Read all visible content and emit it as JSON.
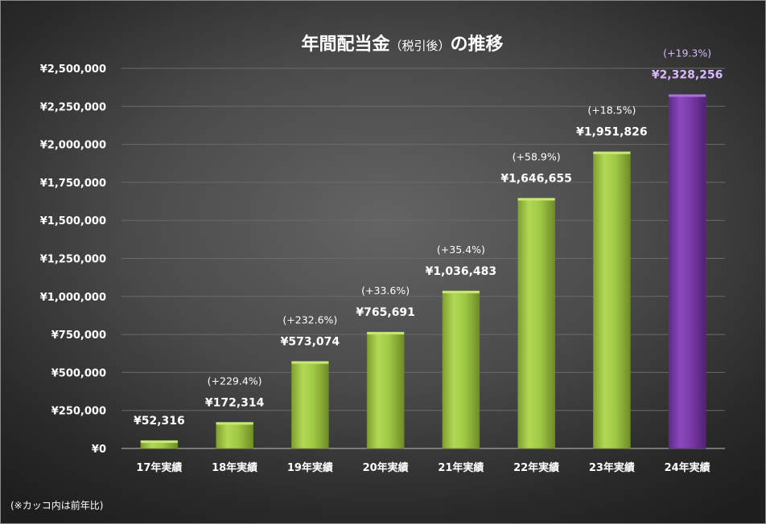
{
  "chart_data": {
    "type": "bar",
    "title": "年間配当金",
    "subtitle": "（税引後）",
    "title_suffix": "の推移",
    "categories": [
      "17年実績",
      "18年実績",
      "19年実績",
      "20年実績",
      "21年実績",
      "22年実績",
      "23年実績",
      "24年実績"
    ],
    "values": [
      52316,
      172314,
      573074,
      765691,
      1036483,
      1646655,
      1951826,
      2328256
    ],
    "value_labels": [
      "¥52,316",
      "¥172,314",
      "¥573,074",
      "¥765,691",
      "¥1,036,483",
      "¥1,646,655",
      "¥1,951,826",
      "¥2,328,256"
    ],
    "growth_labels": [
      "",
      "(+229.4%)",
      "(+232.6%)",
      "(+33.6%)",
      "(+35.4%)",
      "(+58.9%)",
      "(+18.5%)",
      "(+19.3%)"
    ],
    "ylim": [
      0,
      2500000
    ],
    "ytick_values": [
      0,
      250000,
      500000,
      750000,
      1000000,
      1250000,
      1500000,
      1750000,
      2000000,
      2250000,
      2500000
    ],
    "ytick_labels": [
      "¥0",
      "¥250,000",
      "¥500,000",
      "¥750,000",
      "¥1,000,000",
      "¥1,250,000",
      "¥1,500,000",
      "¥1,750,000",
      "¥2,000,000",
      "¥2,250,000",
      "¥2,500,000"
    ],
    "grid": true,
    "highlight_index": 7,
    "colors": {
      "bar": "#9bc53d",
      "bar_highlight": "#7b3aa8",
      "highlight_text": "#d8b7ff",
      "grid": "#6a6a6a",
      "text": "#ffffff"
    }
  },
  "footnote": "(※カッコ内は前年比)"
}
